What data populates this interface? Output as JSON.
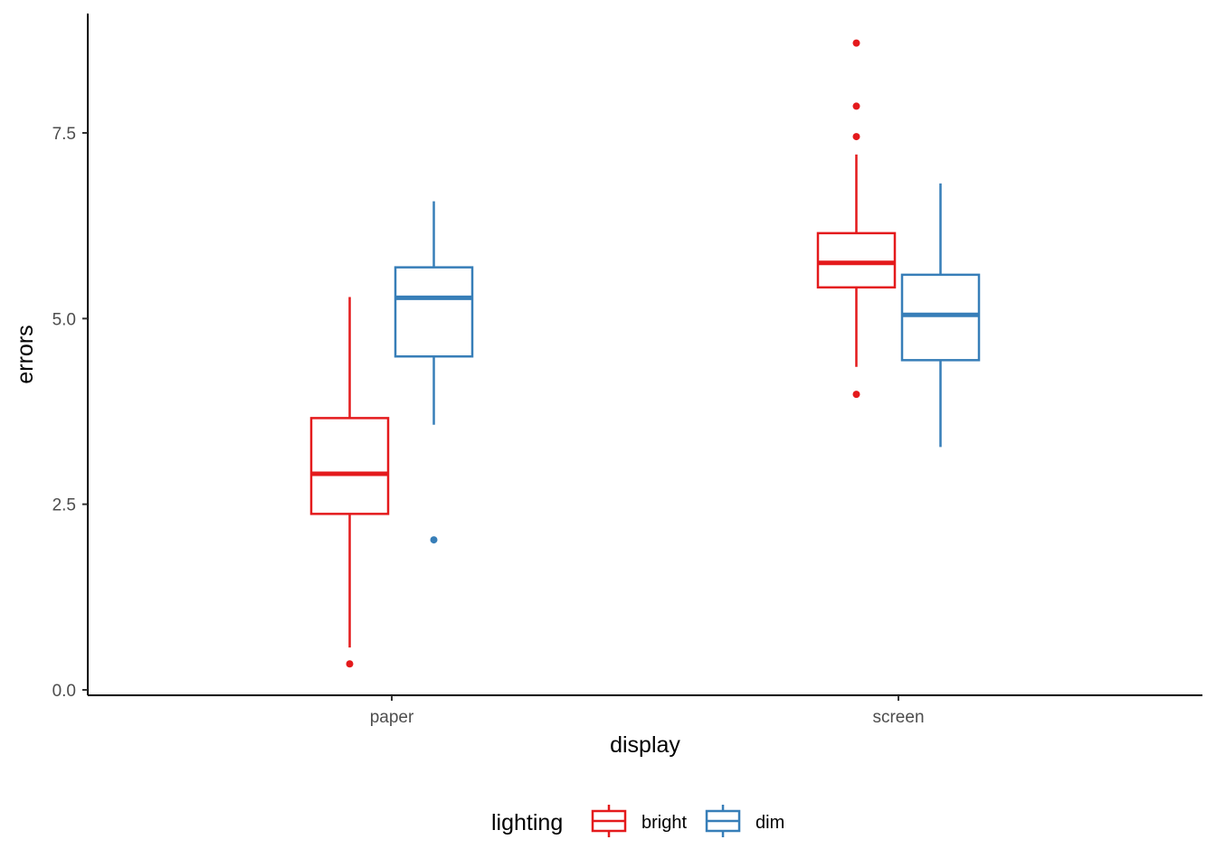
{
  "chart_data": {
    "type": "boxplot",
    "xlabel": "display",
    "ylabel": "errors",
    "categories": [
      "paper",
      "screen"
    ],
    "ylim": [
      -0.1,
      9.2
    ],
    "yticks": [
      0.0,
      2.5,
      5.0,
      7.5
    ],
    "ytick_labels": [
      "0.0",
      "2.5",
      "5.0",
      "7.5"
    ],
    "grid": false,
    "legend": {
      "title": "lighting",
      "position": "bottom",
      "entries": [
        "bright",
        "dim"
      ]
    },
    "series": [
      {
        "name": "bright",
        "color": "#e41a1c",
        "boxes": [
          {
            "category": "paper",
            "whisker_low": 0.57,
            "q1": 2.37,
            "median": 2.91,
            "q3": 3.66,
            "whisker_high": 5.29,
            "outliers": [
              0.35
            ]
          },
          {
            "category": "screen",
            "whisker_low": 4.35,
            "q1": 5.42,
            "median": 5.75,
            "q3": 6.15,
            "whisker_high": 7.21,
            "outliers": [
              3.98,
              7.45,
              7.86,
              8.71
            ]
          }
        ]
      },
      {
        "name": "dim",
        "color": "#377eb8",
        "boxes": [
          {
            "category": "paper",
            "whisker_low": 3.57,
            "q1": 4.49,
            "median": 5.28,
            "q3": 5.69,
            "whisker_high": 6.58,
            "outliers": [
              2.02
            ]
          },
          {
            "category": "screen",
            "whisker_low": 3.27,
            "q1": 4.44,
            "median": 5.05,
            "q3": 5.59,
            "whisker_high": 6.82,
            "outliers": []
          }
        ]
      }
    ]
  }
}
